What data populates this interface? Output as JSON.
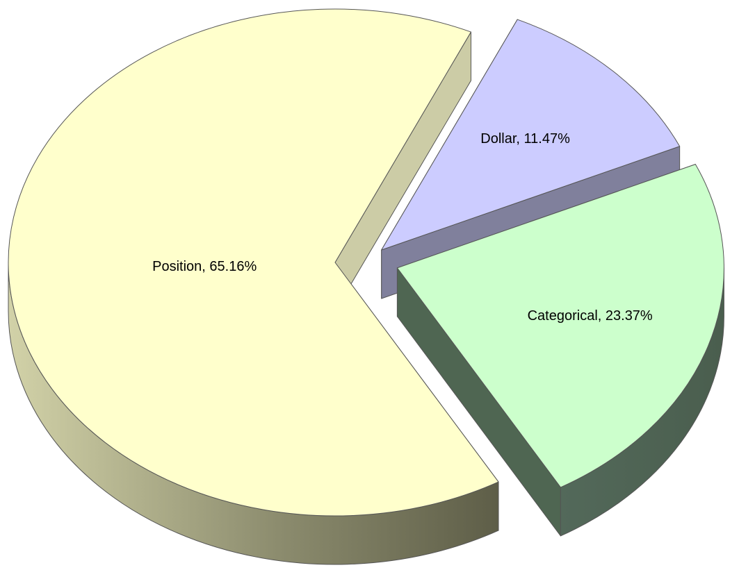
{
  "chart_data": {
    "type": "pie",
    "values": [
      65.16,
      11.47,
      23.37
    ],
    "value_labels": [
      "Position, 65.16%",
      "Dollar, 11.47%",
      "Categorical, 23.37%"
    ],
    "colors": [
      "#ffffcc",
      "#ccccff",
      "#ccffcc"
    ]
  }
}
